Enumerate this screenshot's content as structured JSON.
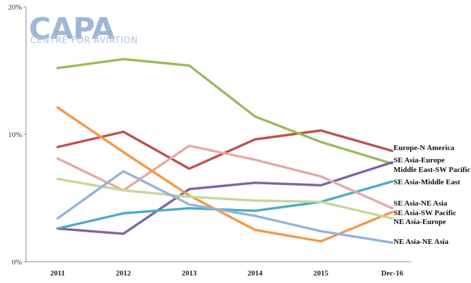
{
  "logo": {
    "main": "CAPA",
    "sub": "CENTRE FOR AVIATION"
  },
  "chart_data": {
    "type": "line",
    "title": "",
    "xlabel": "",
    "ylabel": "",
    "categories": [
      "2011",
      "2012",
      "2013",
      "2014",
      "2015",
      "Dec-16"
    ],
    "ylim": [
      0,
      20
    ],
    "y_ticks": [
      {
        "value": 0,
        "label": "0%"
      },
      {
        "value": 10,
        "label": "10%"
      },
      {
        "value": 20,
        "label": "20%"
      }
    ],
    "grid": false,
    "legend": "inline-right",
    "series": [
      {
        "name": "Europe-N America",
        "color": "#c0504d",
        "values": [
          9.0,
          10.2,
          7.3,
          9.6,
          10.3,
          8.7
        ]
      },
      {
        "name": "SE Asia-Europe",
        "color": "#9bbb59",
        "values": [
          15.2,
          15.9,
          15.4,
          11.4,
          9.4,
          7.7
        ]
      },
      {
        "name": "Middle East-SW Pacific",
        "color": "#8064a2",
        "values": [
          2.6,
          2.2,
          5.7,
          6.2,
          6.0,
          7.8
        ]
      },
      {
        "name": "SE Asia-Middle East",
        "color": "#4bacc6",
        "values": [
          2.6,
          3.8,
          4.2,
          4.0,
          4.7,
          6.3
        ]
      },
      {
        "name": "SE Asia-NE Asia",
        "color": "#e6a8a8",
        "values": [
          8.1,
          5.6,
          9.1,
          8.0,
          6.7,
          4.2
        ]
      },
      {
        "name": "SE Asia-SW Pacific",
        "color": "#f79646",
        "values": [
          12.1,
          8.6,
          5.2,
          2.5,
          1.6,
          3.9
        ]
      },
      {
        "name": "NE Asia-Europe",
        "color": "#c4d79b",
        "values": [
          6.5,
          5.6,
          5.1,
          4.8,
          4.7,
          3.4
        ]
      },
      {
        "name": "NE Asia-NE Asia",
        "color": "#95b3d7",
        "values": [
          3.4,
          7.1,
          4.5,
          3.6,
          2.4,
          1.5
        ]
      }
    ]
  }
}
